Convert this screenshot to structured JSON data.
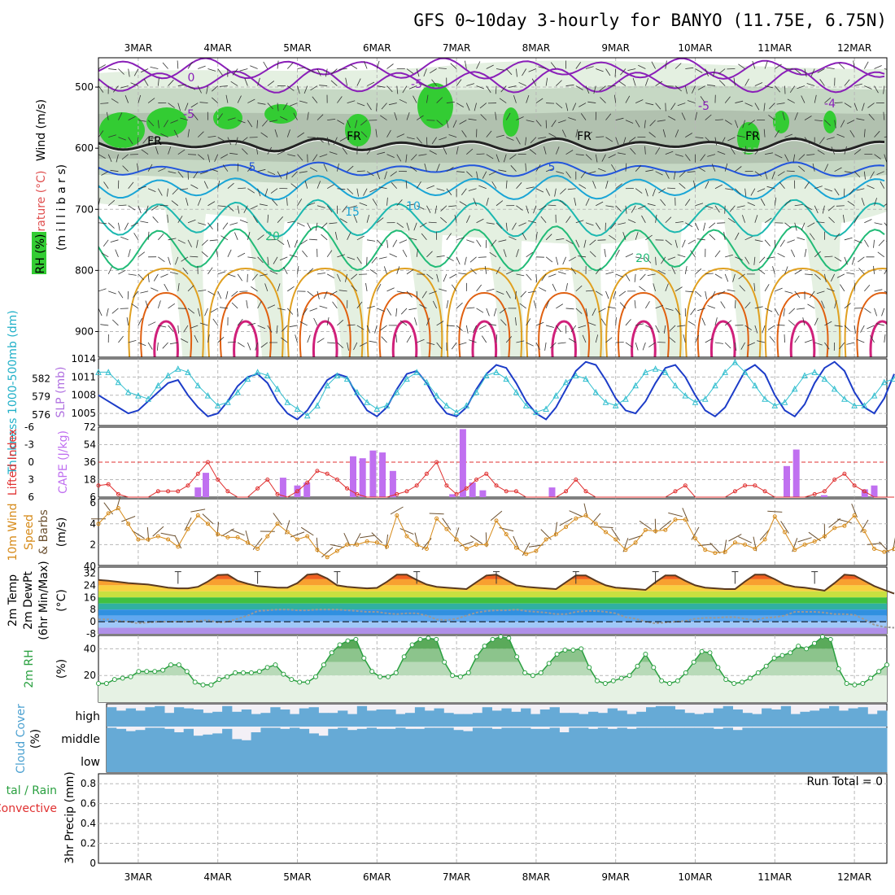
{
  "title": "GFS 0~10day 3-hourly for BANYO (11.75E, 6.75N)",
  "date_labels": [
    "3MAR",
    "4MAR",
    "5MAR",
    "6MAR",
    "7MAR",
    "8MAR",
    "9MAR",
    "10MAR",
    "11MAR",
    "12MAR"
  ],
  "run_total_text": "Run Total = 0",
  "colors": {
    "rh_light": "#e4f0e1",
    "rh_mid": "#c6d8c4",
    "rh_dark": "#a3b3a2",
    "rh_green": "#33cc33",
    "temp_neg": "#8a1fb8",
    "temp_0": "#232323",
    "temp_5": "#2255dd",
    "temp_10": "#1aa5d6",
    "temp_15": "#1cb8b0",
    "temp_20": "#22bb77",
    "temp_warm": "#e0a020",
    "temp_hot": "#e06010",
    "temp_max": "#d0207a",
    "slp": "#1c3cc8",
    "thickness": "#33bfcf",
    "cape": "#c070f0",
    "li": "#e03030",
    "wind": "#d68a18",
    "barb": "#6b5030",
    "tmax_line": "#5a3a20",
    "dewpt": "#999999",
    "rh2m": "#2aa040",
    "cloud": "#66aad6",
    "cloud_gap": "#e9e9e9"
  },
  "upper_panel": {
    "ylabels": [
      "Wind (m/s)",
      "Temperature (°C)",
      "RH (%)",
      "(m i l l i b a r s)"
    ],
    "pressure_ticks": [
      "500",
      "600",
      "700",
      "800",
      "900"
    ],
    "contour_labels": [
      {
        "text": "0",
        "cls": "neg"
      },
      {
        "text": "-5",
        "cls": "neg"
      },
      {
        "text": "-5",
        "cls": "neg"
      },
      {
        "text": "-5",
        "cls": "neg"
      },
      {
        "text": "-4",
        "cls": "neg"
      },
      {
        "text": "FR",
        "cls": "fr"
      },
      {
        "text": "FR",
        "cls": "fr"
      },
      {
        "text": "FR",
        "cls": "fr"
      },
      {
        "text": "FR",
        "cls": "fr"
      },
      {
        "text": "5",
        "cls": "c5"
      },
      {
        "text": "5",
        "cls": "c5"
      },
      {
        "text": "10",
        "cls": "c10"
      },
      {
        "text": "15",
        "cls": "c10"
      },
      {
        "text": "20",
        "cls": "c20"
      },
      {
        "text": "20",
        "cls": "c20"
      }
    ]
  },
  "slp_panel": {
    "left_label_1": "Thickness 1000-500mb (dm)",
    "right_label": "SLP (mb)",
    "thickness_ticks": [
      "582",
      "579",
      "576"
    ],
    "slp_ticks": [
      "1014",
      "1011",
      "1008",
      "1005"
    ]
  },
  "cape_panel": {
    "li_label": "Lifted Index",
    "cape_label": "CAPE (J/kg)",
    "li_ticks": [
      "-6",
      "-3",
      "0",
      "3",
      "6"
    ],
    "cape_ticks": [
      "72",
      "54",
      "36",
      "18",
      "6"
    ]
  },
  "wind_panel": {
    "label_1": "10m Wind",
    "label_2": "Speed",
    "label_3": "& Barbs",
    "unit": "(m/s)",
    "ticks": [
      "6",
      "4",
      "2",
      "40"
    ]
  },
  "temp_panel": {
    "label_1": "2m Temp",
    "label_2": "2m DewPt",
    "label_3": "(6hr Min/Max)",
    "unit": "(°C)",
    "ticks": [
      "32",
      "24",
      "16",
      "8",
      "0",
      "-8"
    ]
  },
  "rh_panel": {
    "label": "2m RH",
    "unit": "(%)",
    "ticks": [
      "40",
      "20"
    ]
  },
  "cloud_panel": {
    "label": "Cloud Cover",
    "unit": "(%)",
    "levels": [
      "high",
      "middle",
      "low"
    ]
  },
  "precip_panel": {
    "label_1": "3hr Precip (mm)",
    "label_2": "tal / Rain",
    "label_3": "Convective",
    "ticks": [
      "0.8",
      "0.6",
      "0.4",
      "0.2",
      "0"
    ]
  },
  "chart_data": [
    {
      "type": "line",
      "title": "",
      "series": [
        {
          "name": "SLP (mb)",
          "values": [
            1008,
            1007,
            1006,
            1005,
            1005.5,
            1007,
            1008.5,
            1010,
            1010.5,
            1008,
            1006,
            1004.5,
            1005,
            1007,
            1009.5,
            1011,
            1011.5,
            1010,
            1007,
            1005,
            1004,
            1005.5,
            1008,
            1010.5,
            1011.5,
            1011,
            1008,
            1005.5,
            1004.5,
            1006,
            1009,
            1011.5,
            1012,
            1010,
            1007,
            1005,
            1004.5,
            1006,
            1009,
            1011.5,
            1013,
            1012.5,
            1010,
            1007,
            1005,
            1004,
            1006,
            1009,
            1012,
            1013.5,
            1013,
            1010.5,
            1007.5,
            1005.5,
            1005,
            1007,
            1010,
            1012.5,
            1013,
            1011,
            1008,
            1005.5,
            1004.5,
            1006,
            1009,
            1012,
            1013,
            1011.5,
            1008,
            1005.5,
            1004.5,
            1006.5,
            1010,
            1012.5,
            1013.5,
            1012,
            1008.5,
            1006,
            1005,
            1007.5,
            1011.5
          ]
        },
        {
          "name": "Thickness 1000-500mb (dm)",
          "values": [
            582,
            582,
            580.5,
            579,
            578.5,
            578,
            580,
            581.5,
            582.5,
            582,
            580,
            578.5,
            577,
            577.5,
            579,
            581,
            582,
            581.5,
            579.5,
            577.5,
            576.5,
            575.5,
            577,
            580,
            581.5,
            581,
            579,
            577.5,
            576.5,
            577,
            579,
            581,
            582,
            580.5,
            578.5,
            577,
            576,
            577,
            579,
            581.5,
            582,
            581,
            579,
            577,
            576,
            576.5,
            578.5,
            580.5,
            581.5,
            581,
            579,
            577.5,
            577,
            578,
            580,
            582,
            582.5,
            582,
            580,
            578.5,
            577.5,
            578,
            580,
            582,
            583.5,
            582,
            580,
            578,
            577,
            577.5,
            579.5,
            581.5,
            582,
            581,
            579.5,
            578,
            577,
            577,
            578.5,
            580.5,
            581
          ]
        }
      ],
      "ylabel": "SLP (mb)",
      "ylim": [
        1003,
        1014
      ]
    },
    {
      "type": "bar",
      "title": "",
      "bars": [
        {
          "x": 3.75,
          "value": 10
        },
        {
          "x": 3.85,
          "value": 25
        },
        {
          "x": 4.82,
          "value": 20
        },
        {
          "x": 5.0,
          "value": 12
        },
        {
          "x": 5.12,
          "value": 15
        },
        {
          "x": 5.7,
          "value": 42
        },
        {
          "x": 5.82,
          "value": 40
        },
        {
          "x": 5.95,
          "value": 48
        },
        {
          "x": 6.07,
          "value": 46
        },
        {
          "x": 6.2,
          "value": 27
        },
        {
          "x": 6.95,
          "value": 3
        },
        {
          "x": 7.08,
          "value": 70
        },
        {
          "x": 7.2,
          "value": 15
        },
        {
          "x": 7.33,
          "value": 7
        },
        {
          "x": 8.2,
          "value": 10
        },
        {
          "x": 11.15,
          "value": 32
        },
        {
          "x": 11.27,
          "value": 49
        },
        {
          "x": 11.62,
          "value": 2
        },
        {
          "x": 12.13,
          "value": 8
        },
        {
          "x": 12.25,
          "value": 12
        }
      ],
      "li_values": [
        4,
        3.8,
        5.5,
        6,
        6,
        6,
        5,
        5,
        5,
        4,
        2,
        0,
        3,
        5,
        6,
        6,
        4.5,
        3,
        5.5,
        6,
        5,
        3.5,
        1.5,
        2,
        3,
        4.5,
        5.5,
        6,
        6,
        6,
        5.5,
        5,
        4,
        2,
        0,
        4,
        5.5,
        4.5,
        3,
        2,
        4,
        5,
        5,
        6,
        6,
        6,
        6,
        5,
        3,
        5,
        6,
        6,
        6,
        6,
        6,
        6,
        6,
        6,
        5,
        4,
        6,
        6,
        6,
        6,
        5,
        4,
        4,
        5,
        6,
        6,
        6,
        6,
        5.5,
        5,
        3,
        2,
        4,
        5,
        6,
        6,
        6
      ],
      "ylabel": "CAPE (J/kg)",
      "ylim": [
        0,
        72
      ]
    },
    {
      "type": "line",
      "title": "",
      "series": [
        {
          "name": "10m Wind Speed",
          "values": [
            4,
            5,
            5.5,
            4,
            2.5,
            2.5,
            2.8,
            2.5,
            1.8,
            3.5,
            4.8,
            4,
            3,
            2.7,
            2.7,
            2.2,
            1.6,
            2.8,
            4,
            3.2,
            2.5,
            2.8,
            1.5,
            0.8,
            1.4,
            2,
            2,
            2.3,
            2.2,
            1.8,
            4.8,
            2.8,
            2,
            1.6,
            4.5,
            3.5,
            2.5,
            1.6,
            2,
            2,
            4.3,
            3,
            1.7,
            1.1,
            1.4,
            2.5,
            3,
            3.7,
            4.5,
            4.8,
            4,
            3.2,
            2.5,
            1.5,
            2.2,
            3.4,
            3.3,
            3.4,
            4.4,
            4.4,
            2.6,
            1.5,
            1.2,
            1.3,
            2.2,
            2,
            1.6,
            2.5,
            4.7,
            3.2,
            1.5,
            2,
            2.3,
            2.8,
            3.6,
            3.8,
            4.8,
            3.3,
            1.6,
            1.3,
            1.6
          ]
        }
      ],
      "ylabel": "(m/s)",
      "ylim": [
        0,
        6
      ]
    },
    {
      "type": "area",
      "title": "",
      "series": [
        {
          "name": "2m Temp",
          "values": [
            27.5,
            27,
            26.3,
            25.5,
            25,
            24.5,
            23.5,
            22.5,
            22,
            22,
            23,
            26.5,
            30.8,
            31,
            27,
            25,
            23.5,
            23,
            22.5,
            22.5,
            25.5,
            31,
            31.5,
            28.5,
            24,
            23,
            22.5,
            22,
            22.3,
            26.3,
            31,
            31,
            27.5,
            24.5,
            23,
            22.5,
            22,
            21.5,
            26,
            30.5,
            31,
            27.5,
            24,
            23,
            22.5,
            22,
            21.5,
            26,
            30.5,
            30.5,
            27,
            24,
            22.5,
            22,
            21.5,
            21,
            26,
            30.5,
            30.5,
            27,
            24,
            22.5,
            22,
            21.5,
            21.5,
            26.5,
            31,
            31,
            28,
            24.5,
            23,
            22.5,
            21.5,
            20.5,
            25.5,
            31,
            30.5,
            27,
            23.5,
            21,
            18.5
          ]
        },
        {
          "name": "2m DewPt",
          "values": [
            1.5,
            1.5,
            0.5,
            0,
            -1,
            -0.5,
            0,
            0,
            0,
            0,
            0.5,
            1,
            -0.5,
            0,
            2,
            4,
            7,
            7.5,
            8,
            8,
            7.5,
            7.5,
            8,
            8,
            8,
            7.5,
            7,
            6.5,
            6.5,
            5.5,
            5,
            5.5,
            5.5,
            4,
            1.5,
            1,
            2,
            4,
            6,
            7,
            7.5,
            7.5,
            8,
            7,
            6.5,
            6,
            5,
            5,
            6.5,
            7,
            7,
            6.5,
            5.5,
            3,
            2,
            0,
            -1,
            -0.5,
            0,
            0.5,
            2,
            2.5,
            2.5,
            3,
            3,
            2,
            1,
            2.5,
            3,
            4,
            6.5,
            6.5,
            6.5,
            6,
            5,
            5,
            4.5,
            1.5,
            -2,
            -3.5,
            -4
          ]
        }
      ],
      "ylabel": "(°C)",
      "ylim": [
        -8,
        36
      ]
    },
    {
      "type": "area",
      "title": "",
      "series": [
        {
          "name": "2m RH",
          "values": [
            14,
            14,
            17,
            18,
            19,
            23,
            23,
            23,
            24,
            28,
            28,
            23,
            15,
            13,
            13,
            17,
            19,
            22,
            22,
            22,
            23,
            26,
            28,
            21,
            17,
            15,
            15,
            19,
            28,
            37,
            43,
            46,
            47,
            33,
            23,
            19,
            19,
            22,
            34,
            43,
            47,
            48,
            47,
            30,
            20,
            19,
            22,
            34,
            42,
            47,
            49,
            48,
            34,
            22,
            20,
            22,
            29,
            36,
            39,
            39,
            40,
            26,
            16,
            14,
            16,
            18,
            20,
            27,
            36,
            26,
            16,
            14,
            16,
            22,
            30,
            38,
            37,
            26,
            17,
            14,
            15,
            18,
            22,
            27,
            33,
            35,
            37,
            42,
            40,
            44,
            49,
            47,
            25,
            14,
            13,
            14,
            18,
            23,
            28
          ]
        }
      ],
      "ylabel": "(%)",
      "ylim": [
        0,
        50
      ]
    },
    {
      "type": "heatmap",
      "title": "",
      "rows": [
        "high",
        "middle",
        "low"
      ],
      "high_cover": [
        85,
        70,
        80,
        70,
        85,
        90,
        60,
        85,
        80,
        75,
        60,
        65,
        90,
        65,
        75,
        55,
        60,
        85,
        75,
        55,
        80,
        85,
        60,
        60,
        70,
        55,
        90,
        70,
        75,
        75,
        55,
        60,
        85,
        70,
        80,
        60,
        55,
        55,
        60,
        85,
        70,
        80,
        65,
        80,
        55,
        75,
        85,
        60,
        60,
        55,
        65,
        60,
        80,
        70,
        55,
        65,
        85,
        90,
        90,
        75,
        60,
        55,
        60,
        80,
        90,
        75,
        60,
        55,
        80,
        75,
        90,
        55,
        65,
        70,
        80,
        90,
        70,
        80,
        85,
        55,
        70
      ],
      "middle_cover": [
        95,
        90,
        80,
        85,
        95,
        95,
        90,
        75,
        90,
        60,
        65,
        70,
        90,
        45,
        40,
        75,
        95,
        95,
        90,
        95,
        90,
        70,
        60,
        90,
        95,
        85,
        90,
        95,
        90,
        90,
        95,
        90,
        90,
        95,
        95,
        95,
        85,
        80,
        95,
        95,
        90,
        95,
        95,
        95,
        90,
        90,
        95,
        75,
        95,
        95,
        90,
        95,
        90,
        95,
        90,
        95,
        95,
        95,
        95,
        95,
        95,
        95,
        95,
        90,
        95,
        85,
        95,
        95,
        95,
        95,
        95,
        95,
        95,
        95,
        95,
        95,
        95,
        95,
        95,
        95,
        95
      ],
      "low_cover": [
        100,
        100,
        100,
        100,
        100,
        100,
        100,
        100,
        100,
        100,
        100,
        100,
        100,
        100,
        100,
        100,
        100,
        100,
        100,
        100,
        100,
        100,
        100,
        100,
        100,
        100,
        100,
        100,
        100,
        100,
        100,
        100,
        100,
        100,
        100,
        100,
        100,
        100,
        100,
        100,
        100,
        100,
        100,
        100,
        100,
        100,
        100,
        100,
        100,
        100,
        100,
        100,
        100,
        100,
        100,
        100,
        100,
        100,
        100,
        100,
        100,
        100,
        100,
        100,
        100,
        100,
        100,
        100,
        100,
        100,
        100,
        100,
        100,
        100,
        100,
        100,
        100,
        100,
        100,
        100,
        100
      ]
    },
    {
      "type": "bar",
      "title": "",
      "values": [],
      "ylabel": "3hr Precip (mm)",
      "ylim": [
        0,
        0.9
      ]
    }
  ]
}
